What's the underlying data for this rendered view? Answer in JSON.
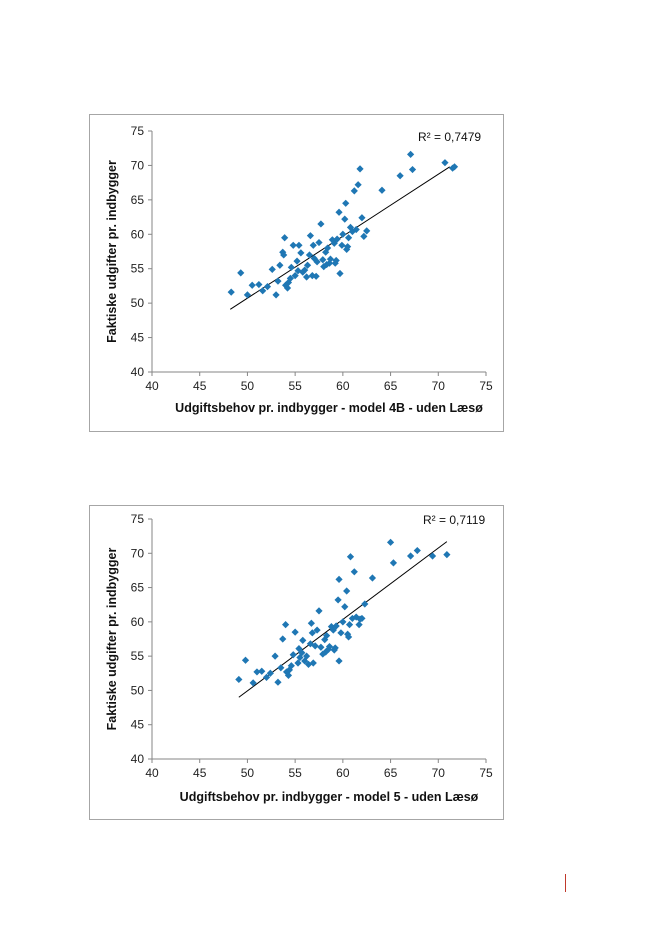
{
  "colors": {
    "marker": "#1f77b4",
    "trendline": "#000000",
    "page_mark": "#c0392b"
  },
  "chart_data": [
    {
      "type": "scatter",
      "title": "",
      "xlabel": "Udgiftsbehov pr. indbygger - model 4B - uden Læsø",
      "ylabel": "Faktiske udgifter pr. indbygger",
      "xlim": [
        40,
        75
      ],
      "ylim": [
        40,
        75
      ],
      "xticks": [
        "40",
        "45",
        "50",
        "55",
        "60",
        "65",
        "70",
        "75"
      ],
      "yticks": [
        "40",
        "45",
        "50",
        "55",
        "60",
        "65",
        "70",
        "75"
      ],
      "annotation": "R² = 0,7479",
      "trendline": {
        "x": [
          48.2,
          71.2
        ],
        "y": [
          49.1,
          69.8
        ]
      },
      "grid": false,
      "points": [
        [
          48.3,
          51.6
        ],
        [
          49.3,
          54.4
        ],
        [
          50,
          51.2
        ],
        [
          50.5,
          52.6
        ],
        [
          51.2,
          52.7
        ],
        [
          51.6,
          51.8
        ],
        [
          52.1,
          52.4
        ],
        [
          52.6,
          54.9
        ],
        [
          53,
          51.2
        ],
        [
          53.2,
          53.2
        ],
        [
          53.4,
          55.5
        ],
        [
          53.7,
          57.4
        ],
        [
          53.9,
          59.5
        ],
        [
          54,
          52.6
        ],
        [
          54.2,
          52.2
        ],
        [
          54.5,
          53.6
        ],
        [
          54.6,
          55.2
        ],
        [
          54.8,
          58.4
        ],
        [
          55,
          54
        ],
        [
          55.3,
          54.7
        ],
        [
          55.4,
          58.4
        ],
        [
          55.6,
          57.3
        ],
        [
          55.8,
          54.5
        ],
        [
          56,
          54.8
        ],
        [
          56.2,
          53.8
        ],
        [
          56.3,
          55.5
        ],
        [
          56.5,
          57
        ],
        [
          56.6,
          59.8
        ],
        [
          56.8,
          54
        ],
        [
          57,
          56.5
        ],
        [
          57.2,
          53.9
        ],
        [
          57.3,
          56
        ],
        [
          57.5,
          58.8
        ],
        [
          57.7,
          61.5
        ],
        [
          57.9,
          56.3
        ],
        [
          58,
          55.3
        ],
        [
          58.2,
          57.4
        ],
        [
          58.4,
          58
        ],
        [
          58.6,
          55.8
        ],
        [
          58.7,
          56.4
        ],
        [
          58.9,
          59.2
        ],
        [
          59.1,
          58.7
        ],
        [
          59.3,
          56.2
        ],
        [
          59.4,
          59.3
        ],
        [
          59.6,
          63.2
        ],
        [
          59.7,
          54.3
        ],
        [
          59.9,
          58.4
        ],
        [
          60,
          60
        ],
        [
          60.2,
          62.2
        ],
        [
          60.3,
          64.5
        ],
        [
          60.5,
          58.2
        ],
        [
          60.6,
          59.5
        ],
        [
          60.8,
          61
        ],
        [
          61,
          60.4
        ],
        [
          61.2,
          66.3
        ],
        [
          61.4,
          60.7
        ],
        [
          61.6,
          67.2
        ],
        [
          61.8,
          69.5
        ],
        [
          62,
          62.4
        ],
        [
          62.2,
          59.7
        ],
        [
          62.5,
          60.5
        ],
        [
          64.1,
          66.4
        ],
        [
          66,
          68.5
        ],
        [
          67.1,
          71.6
        ],
        [
          67.3,
          69.4
        ],
        [
          70.7,
          70.4
        ],
        [
          71.5,
          69.6
        ],
        [
          71.7,
          69.8
        ],
        [
          53.8,
          57
        ],
        [
          54.3,
          53
        ],
        [
          55.2,
          56.1
        ],
        [
          56.9,
          58.4
        ],
        [
          58.3,
          55.6
        ],
        [
          59.2,
          55.8
        ],
        [
          60.4,
          57.8
        ]
      ]
    },
    {
      "type": "scatter",
      "title": "",
      "xlabel": "Udgiftsbehov pr. indbygger - model 5 - uden Læsø",
      "ylabel": "Faktiske udgifter pr. indbygger",
      "xlim": [
        40,
        75
      ],
      "ylim": [
        40,
        75
      ],
      "xticks": [
        "40",
        "45",
        "50",
        "55",
        "60",
        "65",
        "70",
        "75"
      ],
      "yticks": [
        "40",
        "45",
        "50",
        "55",
        "60",
        "65",
        "70",
        "75"
      ],
      "annotation": "R² = 0,7119",
      "trendline": {
        "x": [
          49.1,
          70.9
        ],
        "y": [
          49.0,
          71.7
        ]
      },
      "grid": false,
      "points": [
        [
          49.1,
          51.6
        ],
        [
          49.8,
          54.4
        ],
        [
          50.6,
          51.1
        ],
        [
          51,
          52.7
        ],
        [
          51.5,
          52.8
        ],
        [
          52,
          51.9
        ],
        [
          52.4,
          52.5
        ],
        [
          52.9,
          55
        ],
        [
          53.2,
          51.2
        ],
        [
          53.5,
          53.3
        ],
        [
          53.7,
          57.5
        ],
        [
          54,
          59.6
        ],
        [
          54.1,
          52.7
        ],
        [
          54.3,
          52.2
        ],
        [
          54.6,
          53.6
        ],
        [
          54.8,
          55.2
        ],
        [
          55,
          58.5
        ],
        [
          55.3,
          54
        ],
        [
          55.5,
          54.8
        ],
        [
          55.7,
          55.5
        ],
        [
          55.8,
          57.3
        ],
        [
          56,
          54.3
        ],
        [
          56.2,
          55
        ],
        [
          56.4,
          53.8
        ],
        [
          56.6,
          56.8
        ],
        [
          56.7,
          59.8
        ],
        [
          56.9,
          54
        ],
        [
          57.1,
          56.5
        ],
        [
          57.3,
          58.8
        ],
        [
          57.5,
          61.6
        ],
        [
          57.7,
          56.3
        ],
        [
          57.9,
          55.3
        ],
        [
          58.1,
          57.4
        ],
        [
          58.3,
          58
        ],
        [
          58.5,
          56
        ],
        [
          58.6,
          56.4
        ],
        [
          58.8,
          59.3
        ],
        [
          59,
          58.8
        ],
        [
          59.2,
          56.2
        ],
        [
          59.3,
          59.4
        ],
        [
          59.5,
          63.2
        ],
        [
          59.6,
          54.3
        ],
        [
          59.8,
          58.4
        ],
        [
          60,
          60
        ],
        [
          60.2,
          62.2
        ],
        [
          60.4,
          64.5
        ],
        [
          60.5,
          58.2
        ],
        [
          60.7,
          59.6
        ],
        [
          60.8,
          69.5
        ],
        [
          61,
          60.5
        ],
        [
          61.2,
          67.3
        ],
        [
          61.4,
          60.7
        ],
        [
          61.7,
          59.6
        ],
        [
          62,
          60.5
        ],
        [
          62.3,
          62.6
        ],
        [
          63.1,
          66.4
        ],
        [
          65,
          71.6
        ],
        [
          65.3,
          68.6
        ],
        [
          67.1,
          69.6
        ],
        [
          67.8,
          70.4
        ],
        [
          69.4,
          69.6
        ],
        [
          70.9,
          69.8
        ],
        [
          59.6,
          66.2
        ],
        [
          54.4,
          53
        ],
        [
          55.4,
          56.1
        ],
        [
          56.8,
          58.4
        ],
        [
          58.2,
          55.6
        ],
        [
          59.1,
          55.9
        ],
        [
          60.6,
          57.8
        ],
        [
          61.8,
          60.4
        ]
      ]
    }
  ]
}
